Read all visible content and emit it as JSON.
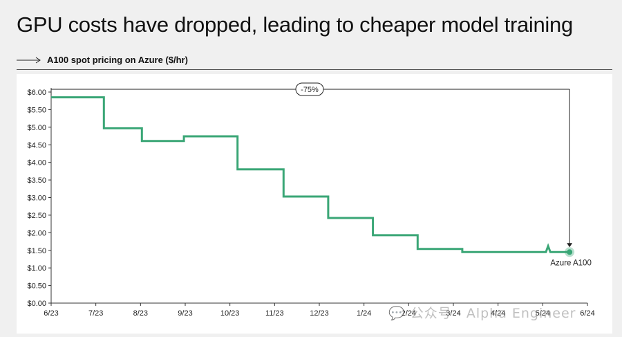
{
  "page": {
    "title": "GPU costs have dropped, leading to cheaper model training",
    "subtitle": "A100 spot pricing on Azure ($/hr)",
    "watermark": "💬 公众号 · Alpha Engineer"
  },
  "colors": {
    "line": "#3aa676",
    "axis": "#333333",
    "background": "#f0f0f0",
    "plot_background": "#ffffff"
  },
  "chart_data": {
    "type": "line",
    "title": "A100 spot pricing on Azure ($/hr)",
    "xlabel": "",
    "ylabel": "",
    "x_ticks": [
      "6/23",
      "7/23",
      "8/23",
      "9/23",
      "10/23",
      "11/23",
      "12/23",
      "1/24",
      "2/24",
      "3/24",
      "4/24",
      "5/24",
      "6/24"
    ],
    "y_ticks": [
      "$0.00",
      "$0.50",
      "$1.00",
      "$1.50",
      "$2.00",
      "$2.50",
      "$3.00",
      "$3.50",
      "$4.00",
      "$4.50",
      "$5.00",
      "$5.50",
      "$6.00"
    ],
    "ylim": [
      0,
      6
    ],
    "x_range_months": [
      0,
      12
    ],
    "grid": false,
    "series": [
      {
        "name": "Azure A100",
        "points": [
          [
            0.0,
            5.85
          ],
          [
            1.18,
            5.85
          ],
          [
            1.18,
            4.97
          ],
          [
            2.03,
            4.97
          ],
          [
            2.03,
            4.61
          ],
          [
            2.97,
            4.61
          ],
          [
            2.97,
            4.74
          ],
          [
            4.17,
            4.74
          ],
          [
            4.17,
            3.8
          ],
          [
            5.2,
            3.8
          ],
          [
            5.2,
            3.03
          ],
          [
            6.2,
            3.03
          ],
          [
            6.2,
            2.42
          ],
          [
            7.2,
            2.42
          ],
          [
            7.2,
            1.93
          ],
          [
            8.2,
            1.93
          ],
          [
            8.2,
            1.54
          ],
          [
            9.2,
            1.54
          ],
          [
            9.2,
            1.45
          ],
          [
            11.07,
            1.45
          ],
          [
            11.12,
            1.62
          ],
          [
            11.17,
            1.45
          ],
          [
            11.6,
            1.45
          ]
        ],
        "end_marker": [
          11.6,
          1.45
        ]
      }
    ],
    "annotations": [
      {
        "text": "-75%",
        "type": "bracket",
        "from": [
          0.0,
          5.85
        ],
        "to": [
          11.6,
          1.45
        ]
      }
    ]
  }
}
